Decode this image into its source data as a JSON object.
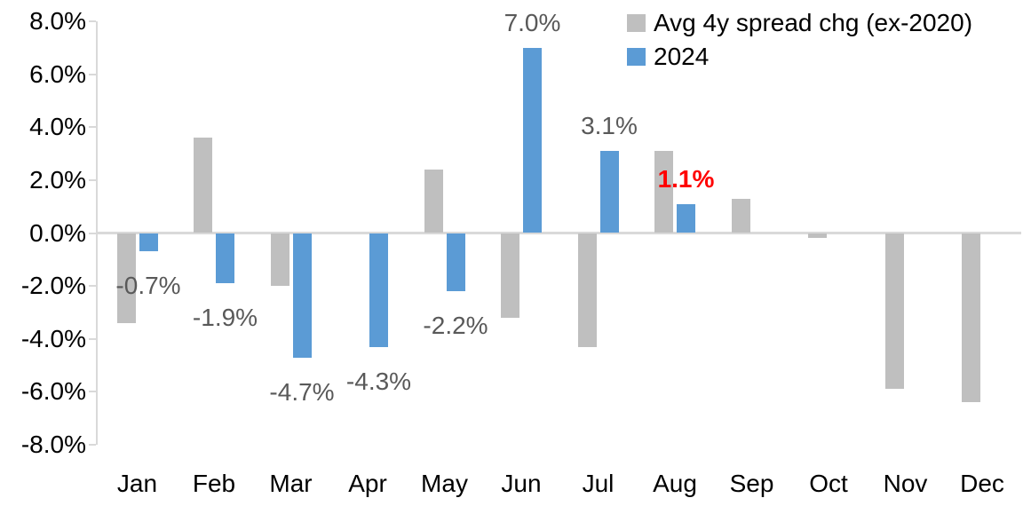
{
  "chart_data": {
    "type": "bar",
    "title": "",
    "xlabel": "",
    "ylabel": "",
    "categories": [
      "Jan",
      "Feb",
      "Mar",
      "Apr",
      "May",
      "Jun",
      "Jul",
      "Aug",
      "Sep",
      "Oct",
      "Nov",
      "Dec"
    ],
    "series": [
      {
        "name": "Avg 4y spread chg (ex-2020)",
        "color": "#bfbfbf",
        "values": [
          -3.4,
          3.6,
          -2.0,
          0.0,
          2.4,
          -3.2,
          -4.3,
          3.1,
          1.3,
          -0.2,
          -5.9,
          -6.4
        ]
      },
      {
        "name": "2024",
        "color": "#5b9bd5",
        "values": [
          -0.7,
          -1.9,
          -4.7,
          -4.3,
          -2.2,
          7.0,
          3.1,
          1.1,
          null,
          null,
          null,
          null
        ]
      }
    ],
    "data_labels": [
      {
        "index": 0,
        "text": "-0.7%",
        "color": "#595959",
        "bold": false
      },
      {
        "index": 1,
        "text": "-1.9%",
        "color": "#595959",
        "bold": false
      },
      {
        "index": 2,
        "text": "-4.7%",
        "color": "#595959",
        "bold": false
      },
      {
        "index": 3,
        "text": "-4.3%",
        "color": "#595959",
        "bold": false
      },
      {
        "index": 4,
        "text": "-2.2%",
        "color": "#595959",
        "bold": false
      },
      {
        "index": 5,
        "text": "7.0%",
        "color": "#595959",
        "bold": false
      },
      {
        "index": 6,
        "text": "3.1%",
        "color": "#595959",
        "bold": false
      },
      {
        "index": 7,
        "text": "1.1%",
        "color": "#ff0000",
        "bold": true
      }
    ],
    "y_ticks": [
      {
        "value": 8,
        "label": "8.0%"
      },
      {
        "value": 6,
        "label": "6.0%"
      },
      {
        "value": 4,
        "label": "4.0%"
      },
      {
        "value": 2,
        "label": "2.0%"
      },
      {
        "value": 0,
        "label": "0.0%"
      },
      {
        "value": -2,
        "label": "-2.0%"
      },
      {
        "value": -4,
        "label": "-4.0%"
      },
      {
        "value": -6,
        "label": "-6.0%"
      },
      {
        "value": -8,
        "label": "-8.0%"
      }
    ],
    "ylim": [
      -8,
      8
    ],
    "grid": "zero-line-only",
    "legend_position": "top-right",
    "axis_color": "#d9d9d9",
    "data_label_color": "#595959",
    "highlight_color": "#ff0000"
  }
}
